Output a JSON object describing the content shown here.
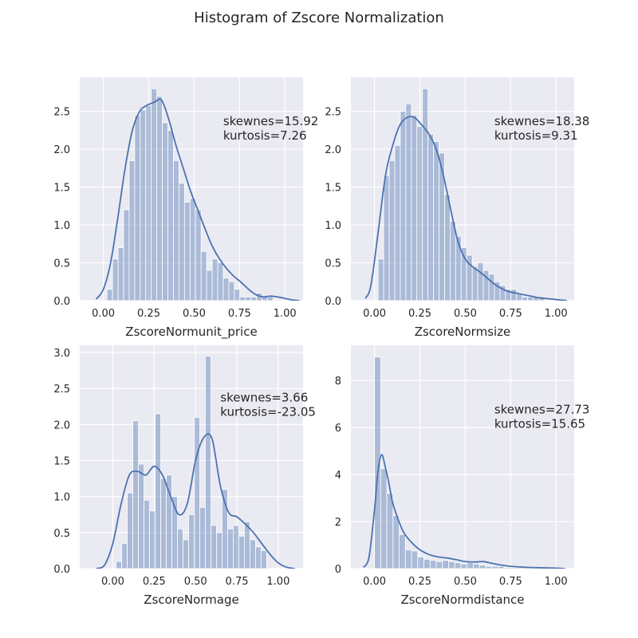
{
  "figure": {
    "title": "Histogram of Zscore Normalization"
  },
  "theme": {
    "panel_bg": "#eaeaf2",
    "grid": "#ffffff",
    "bar": "#4c72b0",
    "kde": "#4c72b0",
    "text": "#262626"
  },
  "chart_data": [
    {
      "type": "bar",
      "xlabel": "ZscoreNormunit_price",
      "xlim": [
        -0.13,
        1.1
      ],
      "ylim": [
        0,
        2.95
      ],
      "xticks": [
        0.0,
        0.25,
        0.5,
        0.75,
        1.0
      ],
      "xtick_labels": [
        "0.00",
        "0.25",
        "0.50",
        "0.75",
        "1.00"
      ],
      "yticks": [
        0.0,
        0.5,
        1.0,
        1.5,
        2.0,
        2.5
      ],
      "ytick_labels": [
        "0.0",
        "0.5",
        "1.0",
        "1.5",
        "2.0",
        "2.5"
      ],
      "bin_start": 0.02,
      "bin_width": 0.0305,
      "values": [
        0.15,
        0.55,
        0.7,
        1.2,
        1.85,
        2.45,
        2.52,
        2.58,
        2.8,
        2.7,
        2.35,
        2.25,
        1.85,
        1.55,
        1.3,
        1.35,
        1.2,
        0.65,
        0.4,
        0.55,
        0.5,
        0.3,
        0.25,
        0.15,
        0.05,
        0.05,
        0.05,
        0.1,
        0.05,
        0.05
      ],
      "kde": {
        "x": [
          -0.04,
          0.0,
          0.04,
          0.08,
          0.12,
          0.16,
          0.2,
          0.24,
          0.28,
          0.32,
          0.36,
          0.4,
          0.44,
          0.48,
          0.52,
          0.56,
          0.6,
          0.64,
          0.68,
          0.72,
          0.76,
          0.8,
          0.84,
          0.88,
          0.92,
          0.96,
          1.0,
          1.04,
          1.08
        ],
        "y": [
          0.02,
          0.15,
          0.5,
          1.1,
          1.75,
          2.25,
          2.5,
          2.58,
          2.62,
          2.65,
          2.4,
          2.05,
          1.75,
          1.45,
          1.2,
          0.95,
          0.72,
          0.55,
          0.42,
          0.32,
          0.24,
          0.15,
          0.08,
          0.05,
          0.06,
          0.05,
          0.03,
          0.01,
          0.0
        ]
      },
      "annotation": "skewnes=15.92\nkurtosis=7.26",
      "annotation_pos": [
        0.66,
        2.32
      ]
    },
    {
      "type": "bar",
      "xlabel": "ZscoreNormsize",
      "xlim": [
        -0.13,
        1.1
      ],
      "ylim": [
        0,
        2.95
      ],
      "xticks": [
        0.0,
        0.25,
        0.5,
        0.75,
        1.0
      ],
      "xtick_labels": [
        "0.00",
        "0.25",
        "0.50",
        "0.75",
        "1.00"
      ],
      "yticks": [
        0.0,
        0.5,
        1.0,
        1.5,
        2.0,
        2.5
      ],
      "ytick_labels": [
        "0.0",
        "0.5",
        "1.0",
        "1.5",
        "2.0",
        "2.5"
      ],
      "bin_start": 0.02,
      "bin_width": 0.0305,
      "values": [
        0.55,
        1.65,
        1.85,
        2.05,
        2.5,
        2.6,
        2.45,
        2.3,
        2.8,
        2.2,
        2.1,
        1.95,
        1.4,
        1.05,
        0.85,
        0.7,
        0.6,
        0.45,
        0.5,
        0.4,
        0.35,
        0.25,
        0.2,
        0.15,
        0.15,
        0.1,
        0.05,
        0.05,
        0.05,
        0.03
      ],
      "kde": {
        "x": [
          -0.05,
          -0.02,
          0.02,
          0.06,
          0.1,
          0.14,
          0.18,
          0.22,
          0.26,
          0.3,
          0.34,
          0.38,
          0.42,
          0.46,
          0.5,
          0.54,
          0.58,
          0.62,
          0.66,
          0.7,
          0.74,
          0.78,
          0.82,
          0.86,
          0.9,
          0.94,
          0.98,
          1.02,
          1.06
        ],
        "y": [
          0.03,
          0.2,
          0.9,
          1.65,
          2.05,
          2.32,
          2.42,
          2.42,
          2.32,
          2.2,
          2.0,
          1.65,
          1.2,
          0.78,
          0.55,
          0.45,
          0.38,
          0.3,
          0.22,
          0.16,
          0.12,
          0.1,
          0.08,
          0.06,
          0.04,
          0.03,
          0.02,
          0.01,
          0.0
        ]
      },
      "annotation": "skewnes=18.38\nkurtosis=9.31",
      "annotation_pos": [
        0.66,
        2.32
      ]
    },
    {
      "type": "bar",
      "xlabel": "ZscoreNormage",
      "xlim": [
        -0.2,
        1.15
      ],
      "ylim": [
        0,
        3.1
      ],
      "xticks": [
        0.0,
        0.25,
        0.5,
        0.75,
        1.0
      ],
      "xtick_labels": [
        "0.00",
        "0.25",
        "0.50",
        "0.75",
        "1.00"
      ],
      "yticks": [
        0.0,
        0.5,
        1.0,
        1.5,
        2.0,
        2.5,
        3.0
      ],
      "ytick_labels": [
        "0.0",
        "0.5",
        "1.0",
        "1.5",
        "2.0",
        "2.5",
        "3.0"
      ],
      "bin_start": 0.02,
      "bin_width": 0.0337,
      "values": [
        0.1,
        0.35,
        1.05,
        2.05,
        1.45,
        0.95,
        0.8,
        2.15,
        1.25,
        1.3,
        1.0,
        0.55,
        0.4,
        0.75,
        2.1,
        0.85,
        2.95,
        0.6,
        0.5,
        1.1,
        0.55,
        0.6,
        0.45,
        0.65,
        0.4,
        0.3,
        0.25
      ],
      "kde": {
        "x": [
          -0.1,
          -0.05,
          0.0,
          0.05,
          0.1,
          0.15,
          0.2,
          0.25,
          0.3,
          0.35,
          0.4,
          0.45,
          0.5,
          0.55,
          0.6,
          0.65,
          0.7,
          0.75,
          0.8,
          0.85,
          0.9,
          0.95,
          1.0,
          1.05,
          1.1
        ],
        "y": [
          0.0,
          0.05,
          0.35,
          0.9,
          1.3,
          1.35,
          1.3,
          1.42,
          1.3,
          1.0,
          0.75,
          0.9,
          1.5,
          1.82,
          1.8,
          1.15,
          0.78,
          0.72,
          0.62,
          0.5,
          0.35,
          0.2,
          0.08,
          0.02,
          0.0
        ]
      },
      "annotation": "skewnes=3.66\nkurtosis=-23.05",
      "annotation_pos": [
        0.65,
        2.32
      ]
    },
    {
      "type": "bar",
      "xlabel": "ZscoreNormdistance",
      "xlim": [
        -0.13,
        1.1
      ],
      "ylim": [
        0,
        9.5
      ],
      "xticks": [
        0.0,
        0.25,
        0.5,
        0.75,
        1.0
      ],
      "xtick_labels": [
        "0.00",
        "0.25",
        "0.50",
        "0.75",
        "1.00"
      ],
      "yticks": [
        0,
        2,
        4,
        6,
        8
      ],
      "ytick_labels": [
        "0",
        "2",
        "4",
        "6",
        "8"
      ],
      "bin_start": 0.0,
      "bin_width": 0.034,
      "values": [
        9.0,
        4.25,
        3.2,
        2.25,
        1.45,
        0.8,
        0.75,
        0.5,
        0.4,
        0.35,
        0.3,
        0.35,
        0.3,
        0.25,
        0.2,
        0.25,
        0.2,
        0.15,
        0.1,
        0.1,
        0.1,
        0.05,
        0.05,
        0.05,
        0.05,
        0.05,
        0.03,
        0.03,
        0.03,
        0.02
      ],
      "kde": {
        "x": [
          -0.06,
          -0.03,
          0.0,
          0.02,
          0.04,
          0.06,
          0.08,
          0.1,
          0.13,
          0.16,
          0.2,
          0.25,
          0.3,
          0.35,
          0.4,
          0.45,
          0.5,
          0.55,
          0.6,
          0.65,
          0.7,
          0.75,
          0.8,
          0.85,
          0.9,
          0.95,
          1.0,
          1.05
        ],
        "y": [
          0.05,
          0.5,
          2.5,
          4.2,
          4.85,
          4.3,
          3.6,
          2.8,
          2.1,
          1.55,
          1.15,
          0.8,
          0.6,
          0.5,
          0.45,
          0.38,
          0.3,
          0.28,
          0.3,
          0.22,
          0.15,
          0.1,
          0.07,
          0.05,
          0.04,
          0.03,
          0.02,
          0.0
        ]
      },
      "annotation": "skewnes=27.73\nkurtosis=15.65",
      "annotation_pos": [
        0.66,
        6.6
      ]
    }
  ]
}
